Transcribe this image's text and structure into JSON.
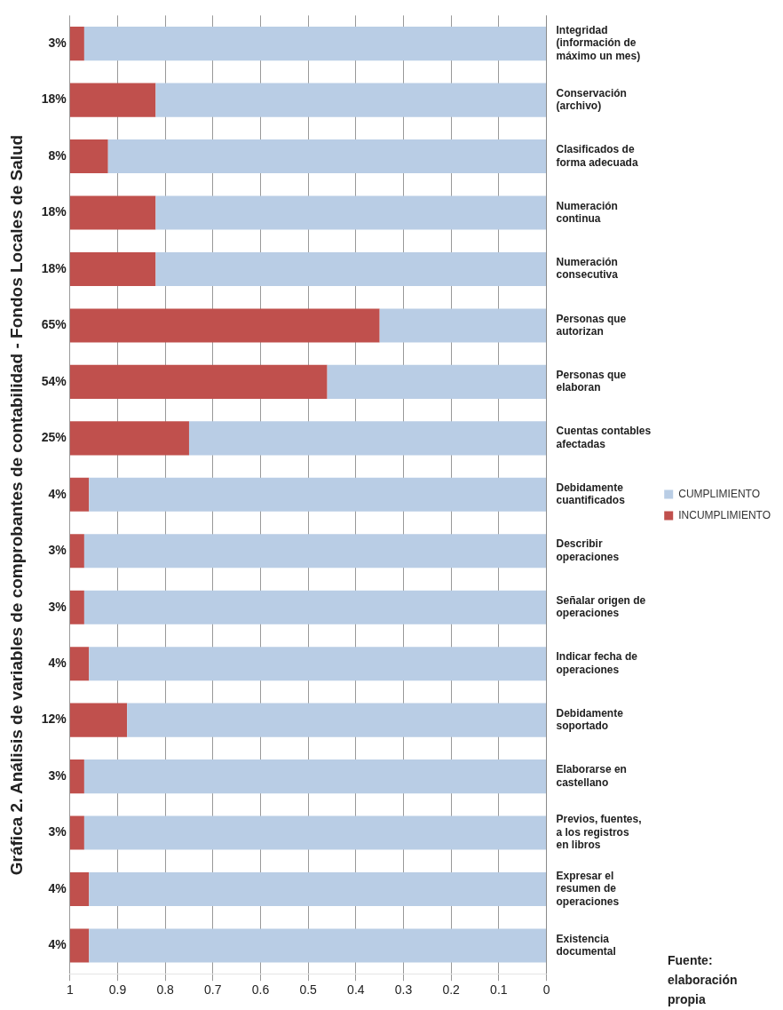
{
  "chart_data": {
    "type": "bar",
    "title": "Gráfica 2. Análisis de variables de comprobantes de contabilidad - Fondos Locales de Salud",
    "orientation": "horizontal",
    "categories": [
      "Integridad (información de máximo un mes)",
      "Conservación (archivo)",
      "Clasificados de forma adecuada",
      "Numeración continua",
      "Numeración consecutiva",
      "Personas que autorizan",
      "Personas que elaboran",
      "Cuentas contables afectadas",
      "Debidamente cuantificados",
      "Describir operaciones",
      "Señalar origen de operaciones",
      "Indicar fecha de operaciones",
      "Debidamente soportado",
      "Elaborarse en castellano",
      "Previos, fuentes, a los registros en libros",
      "Expresar el resumen de operaciones",
      "Existencia documental"
    ],
    "series": [
      {
        "name": "CUMPLIMIENTO",
        "color": "#b9cde5",
        "values": [
          0.97,
          0.82,
          0.92,
          0.82,
          0.82,
          0.35,
          0.46,
          0.75,
          0.96,
          0.97,
          0.97,
          0.96,
          0.88,
          0.97,
          0.97,
          0.96,
          0.96
        ]
      },
      {
        "name": "INCUMPLIMIENTO",
        "color": "#c0504d",
        "values": [
          0.03,
          0.18,
          0.08,
          0.18,
          0.18,
          0.65,
          0.54,
          0.25,
          0.04,
          0.03,
          0.03,
          0.04,
          0.12,
          0.03,
          0.03,
          0.04,
          0.04
        ],
        "value_labels": [
          "3%",
          "18%",
          "8%",
          "18%",
          "18%",
          "65%",
          "54%",
          "25%",
          "4%",
          "3%",
          "3%",
          "4%",
          "12%",
          "3%",
          "3%",
          "4%",
          "4%"
        ]
      }
    ],
    "stacked": true,
    "xlim": [
      1,
      0
    ],
    "xticks": [
      1,
      0.9,
      0.8,
      0.7,
      0.6,
      0.5,
      0.4,
      0.3,
      0.2,
      0.1,
      0
    ],
    "grid": "x",
    "legend": "right",
    "annotations": [
      "Fuente: elaboración propia"
    ]
  }
}
